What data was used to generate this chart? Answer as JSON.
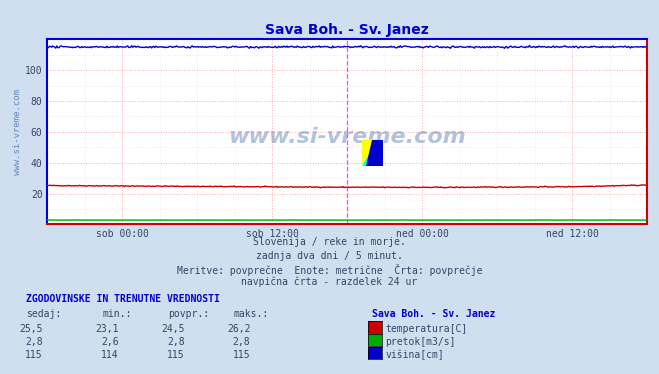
{
  "title": "Sava Boh. - Sv. Janez",
  "title_color": "#0000cc",
  "bg_color": "#d0dff0",
  "plot_bg_color": "#ffffff",
  "grid_color_major": "#ffaaaa",
  "grid_color_minor": "#ddddee",
  "xlim": [
    0,
    576
  ],
  "ylim": [
    0,
    120
  ],
  "yticks_major": [
    20,
    40,
    60,
    80,
    100
  ],
  "yticks_minor": [
    0,
    10,
    20,
    30,
    40,
    50,
    60,
    70,
    80,
    90,
    100,
    110,
    120
  ],
  "xtick_labels": [
    "sob 00:00",
    "sob 12:00",
    "ned 00:00",
    "ned 12:00"
  ],
  "xtick_positions": [
    72,
    216,
    360,
    504
  ],
  "vline_positions": [
    288,
    576
  ],
  "vline_color": "#ff44ff",
  "border_color_top_left": "#0000dd",
  "border_color_bottom_right": "#cc0000",
  "temp_color": "#cc0000",
  "flow_color": "#00aa00",
  "height_color": "#0000cc",
  "watermark_color": "#6688bb",
  "watermark_text": "www.si-vreme.com",
  "ylabel_text": "www.si-vreme.com",
  "ylabel_color": "#6688bb",
  "text_line1": "Slovenija / reke in morje.",
  "text_line2": "zadnja dva dni / 5 minut.",
  "text_line3": "Meritve: povprečne  Enote: metrične  Črta: povprečje",
  "text_line4": "navpična črta - razdelek 24 ur",
  "table_header": "ZGODOVINSKE IN TRENUTNE VREDNOSTI",
  "col_headers": [
    "sedaj:",
    "min.:",
    "povpr.:",
    "maks.:"
  ],
  "station_label": "Sava Boh. - Sv. Janez",
  "row1": [
    "25,5",
    "23,1",
    "24,5",
    "26,2"
  ],
  "row2": [
    "2,8",
    "2,6",
    "2,8",
    "2,8"
  ],
  "row3": [
    "115",
    "114",
    "115",
    "115"
  ],
  "legend_labels": [
    "temperatura[C]",
    "pretok[m3/s]",
    "višina[cm]"
  ],
  "legend_colors": [
    "#cc0000",
    "#00aa00",
    "#0000cc"
  ]
}
